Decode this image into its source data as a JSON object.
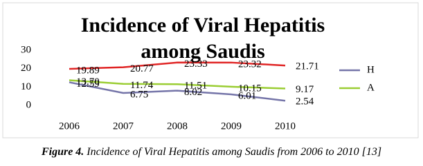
{
  "chart_data": {
    "type": "line",
    "title": "Incidence of Viral Hepatitis among Saudis",
    "categories": [
      "2006",
      "2007",
      "2008",
      "2009",
      "2010"
    ],
    "series": [
      {
        "color": "#e02424",
        "values": [
          19.89,
          20.77,
          23.33,
          23.32,
          21.71
        ]
      },
      {
        "name": "A",
        "color": "#9acd32",
        "values": [
          13.7,
          11.74,
          11.51,
          10.15,
          9.17
        ],
        "value_labels": [
          "13.70",
          "11.74",
          "11.51",
          "10.15",
          "9.17"
        ]
      },
      {
        "name": "H",
        "color": "#7474a8",
        "values": [
          12.59,
          6.75,
          8.02,
          6.01,
          2.54
        ]
      }
    ],
    "ylim": [
      0,
      30
    ],
    "yticks": [
      0,
      10,
      20,
      30
    ],
    "grid": false
  },
  "caption": {
    "label": "Figure 4.",
    "text": "Incidence of Viral Hepatitis among Saudis from 2006 to 2010 [13]"
  }
}
